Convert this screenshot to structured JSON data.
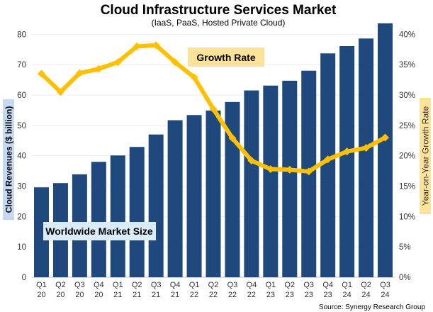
{
  "chart_data": {
    "type": "bar+line",
    "title": "Cloud Infrastructure Services Market",
    "subtitle": "(IaaS, PaaS, Hosted Private Cloud)",
    "ylabel": "Cloud Revenues ($ billion)",
    "y2label": "Year-on-Year Growth Rate",
    "ylim": [
      0,
      80
    ],
    "y2lim": [
      0,
      40
    ],
    "yticks": [
      "0",
      "10",
      "20",
      "30",
      "40",
      "50",
      "60",
      "70",
      "80"
    ],
    "y2ticks": [
      "0%",
      "5%",
      "10%",
      "15%",
      "20%",
      "25%",
      "30%",
      "35%",
      "40%"
    ],
    "grid": true,
    "categories": [
      [
        "Q1",
        "20"
      ],
      [
        "Q2",
        "20"
      ],
      [
        "Q3",
        "20"
      ],
      [
        "Q4",
        "20"
      ],
      [
        "Q1",
        "21"
      ],
      [
        "Q2",
        "21"
      ],
      [
        "Q3",
        "21"
      ],
      [
        "Q4",
        "21"
      ],
      [
        "Q1",
        "22"
      ],
      [
        "Q2",
        "22"
      ],
      [
        "Q3",
        "22"
      ],
      [
        "Q4",
        "22"
      ],
      [
        "Q1",
        "23"
      ],
      [
        "Q2",
        "23"
      ],
      [
        "Q3",
        "23"
      ],
      [
        "Q4",
        "23"
      ],
      [
        "Q1",
        "24"
      ],
      [
        "Q2",
        "24"
      ],
      [
        "Q3",
        "24"
      ]
    ],
    "series": [
      {
        "name": "Worldwide Market Size",
        "type": "bar",
        "axis": "left",
        "color": "#1f497d",
        "values": [
          29.6,
          31.0,
          33.9,
          38.0,
          40.1,
          42.9,
          47.0,
          51.7,
          53.4,
          54.9,
          57.7,
          61.5,
          63.1,
          64.7,
          68.0,
          73.7,
          76.1,
          78.6,
          83.6
        ]
      },
      {
        "name": "Growth Rate",
        "type": "line",
        "axis": "right",
        "color": "#ffc000",
        "values": [
          33.5,
          30.5,
          33.6,
          34.3,
          35.4,
          38.0,
          38.2,
          35.4,
          32.9,
          27.7,
          22.9,
          19.2,
          17.8,
          17.7,
          17.4,
          19.4,
          20.7,
          21.3,
          23.0
        ]
      }
    ],
    "source": "Source: Synergy Research Group"
  }
}
